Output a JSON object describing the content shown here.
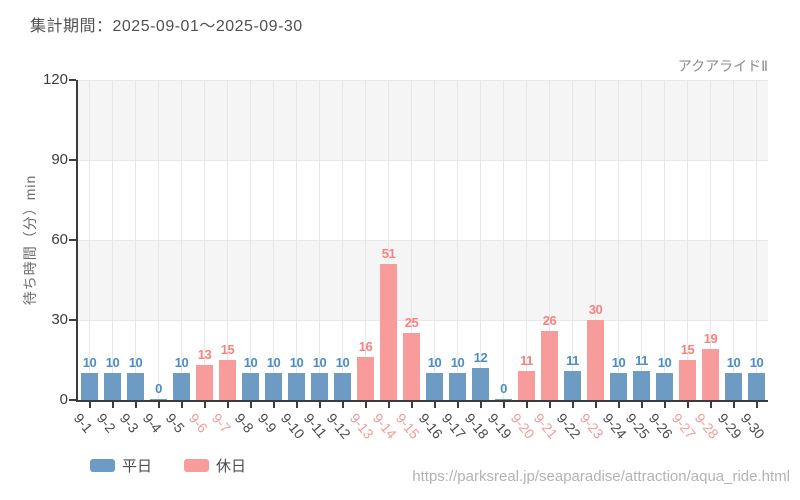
{
  "header": {
    "title": "集計期間：2025-09-01～2025-09-30"
  },
  "chart": {
    "series_label": "アクアライドⅡ",
    "y_axis_title": "待ち時間（分）min"
  },
  "legend": {
    "items": [
      {
        "label": "平日",
        "type": "weekday"
      },
      {
        "label": "休日",
        "type": "holiday"
      }
    ]
  },
  "footer": {
    "url": "https://parksreal.jp/seaparadise/attraction/aqua_ride.html"
  },
  "colors": {
    "weekday_bar": "#6e9bc3",
    "weekday_value_label": "#4c8cc4",
    "weekday_tick_label": "#4b4b4b",
    "holiday_bar": "#f89b9b",
    "holiday_value_label": "#f88080",
    "holiday_tick_label": "#f49b9b",
    "axis": "#3c3c3c",
    "gridline": "#e7e7e7",
    "band_gray": "#f5f5f6"
  },
  "chart_data": {
    "type": "bar",
    "title": "アクアライドⅡ",
    "period": "2025-09-01～2025-09-30",
    "xlabel": "",
    "ylabel": "待ち時間（分）min",
    "ylim": [
      0,
      120
    ],
    "yticks": [
      0,
      30,
      60,
      90,
      120
    ],
    "grid": true,
    "legend_position": "bottom-left",
    "legend": [
      "平日",
      "休日"
    ],
    "categories": [
      "9-1",
      "9-2",
      "9-3",
      "9-4",
      "9-5",
      "9-6",
      "9-7",
      "9-8",
      "9-9",
      "9-10",
      "9-11",
      "9-12",
      "9-13",
      "9-14",
      "9-15",
      "9-16",
      "9-17",
      "9-18",
      "9-19",
      "9-20",
      "9-21",
      "9-22",
      "9-23",
      "9-24",
      "9-25",
      "9-26",
      "9-27",
      "9-28",
      "9-29",
      "9-30"
    ],
    "values": [
      10,
      10,
      10,
      0,
      10,
      13,
      15,
      10,
      10,
      10,
      10,
      10,
      16,
      51,
      25,
      10,
      10,
      12,
      0,
      11,
      26,
      11,
      30,
      10,
      11,
      10,
      15,
      19,
      10,
      10
    ],
    "day_types": [
      "weekday",
      "weekday",
      "weekday",
      "weekday",
      "weekday",
      "holiday",
      "holiday",
      "weekday",
      "weekday",
      "weekday",
      "weekday",
      "weekday",
      "holiday",
      "holiday",
      "holiday",
      "weekday",
      "weekday",
      "weekday",
      "weekday",
      "holiday",
      "holiday",
      "weekday",
      "holiday",
      "weekday",
      "weekday",
      "weekday",
      "holiday",
      "holiday",
      "weekday",
      "weekday"
    ]
  }
}
